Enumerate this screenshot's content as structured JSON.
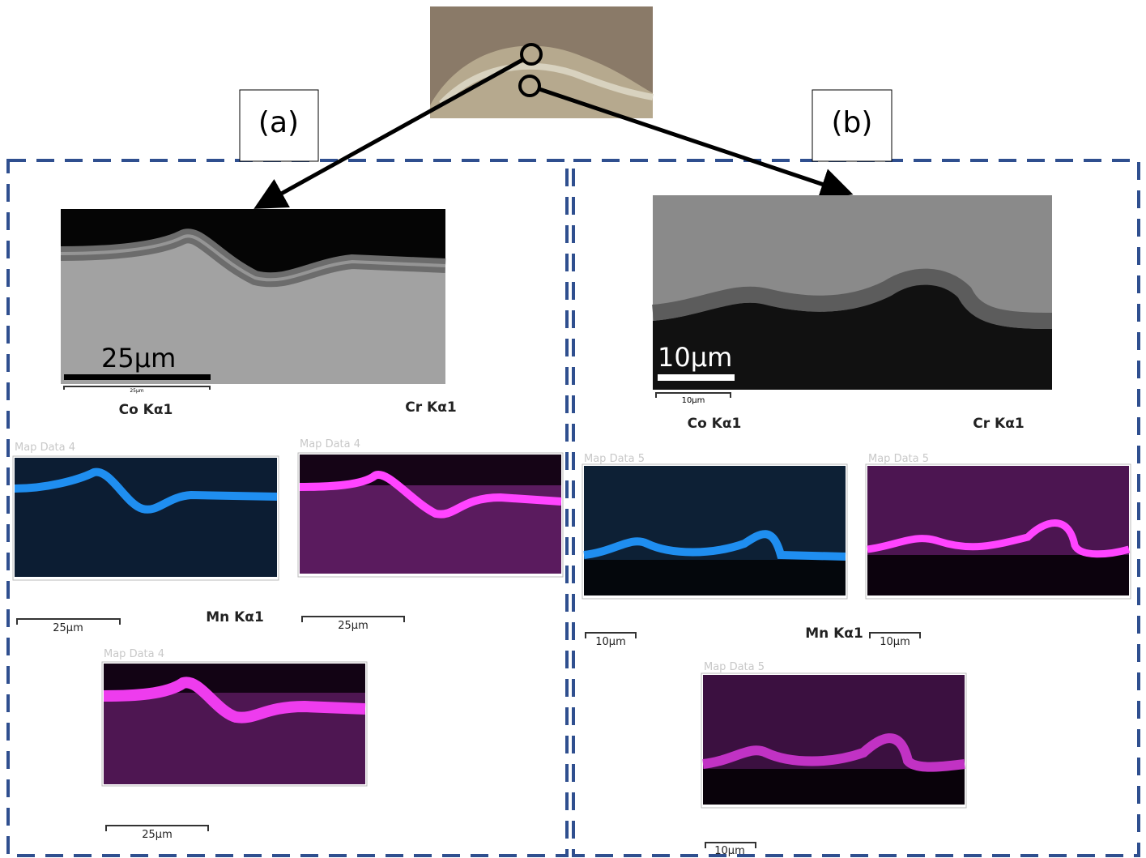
{
  "labels": {
    "a": "(a)",
    "b": "(b)"
  },
  "panels": [
    {
      "sem_scale": "25µm",
      "sem_scale_small": "25µm",
      "maps": [
        {
          "element": "Co Kα1",
          "map_title": "Map Data 4",
          "scale": "25µm"
        },
        {
          "element": "Cr Kα1",
          "map_title": "Map Data 4",
          "scale": "25µm"
        },
        {
          "element": "Mn Kα1",
          "map_title": "Map Data 4",
          "scale": "25µm"
        }
      ]
    },
    {
      "sem_scale": "10µm",
      "sem_scale_small": "10µm",
      "maps": [
        {
          "element": "Co Kα1",
          "map_title": "Map Data 5",
          "scale": "10µm"
        },
        {
          "element": "Cr Kα1",
          "map_title": "Map Data 5",
          "scale": "10µm"
        },
        {
          "element": "Mn Kα1",
          "map_title": "Map Data 5",
          "scale": "10µm"
        }
      ]
    }
  ]
}
